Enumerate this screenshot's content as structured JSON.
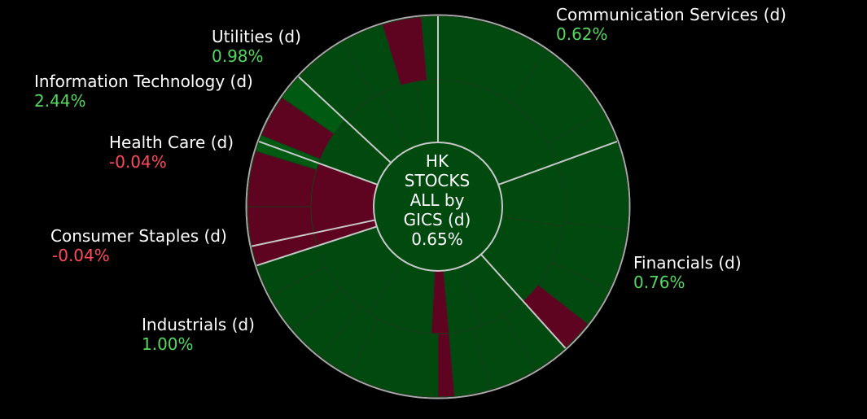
{
  "colors": {
    "background": "#000000",
    "positive_fill": "#004a0f",
    "positive_bright_fill": "#005a12",
    "negative_fill": "#5e0320",
    "sector_separator": "#c8c8c8",
    "sub_separator": "#1a3a1a",
    "outer_ring": "#a8a8a8",
    "positive_text": "#55d860",
    "negative_text": "#ff4a5a",
    "label_text": "#ffffff"
  },
  "center": {
    "line1": "HK",
    "line2": "STOCKS",
    "line3": "ALL by",
    "line4": "GICS (d)",
    "value": "0.65%"
  },
  "sectors": [
    {
      "name": "Communication Services (d)",
      "change": "0.62%",
      "sign": "positive"
    },
    {
      "name": "Financials (d)",
      "change": "0.76%",
      "sign": "positive"
    },
    {
      "name": "Industrials (d)",
      "change": "1.00%",
      "sign": "positive"
    },
    {
      "name": "Consumer Staples (d)",
      "change": "-0.04%",
      "sign": "negative"
    },
    {
      "name": "Health Care (d)",
      "change": "-0.04%",
      "sign": "negative"
    },
    {
      "name": "Information Technology (d)",
      "change": "2.44%",
      "sign": "positive"
    },
    {
      "name": "Utilities (d)",
      "change": "0.98%",
      "sign": "positive"
    }
  ],
  "chart_data": {
    "type": "sunburst",
    "title": "HK STOCKS ALL by GICS (d)",
    "total_change_pct": 0.65,
    "sector_changes_pct": [
      {
        "sector": "Communication Services (d)",
        "change_pct": 0.62
      },
      {
        "sector": "Financials (d)",
        "change_pct": 0.76
      },
      {
        "sector": "Industrials (d)",
        "change_pct": 1.0
      },
      {
        "sector": "Consumer Staples (d)",
        "change_pct": -0.04
      },
      {
        "sector": "Health Care (d)",
        "change_pct": -0.04
      },
      {
        "sector": "Information Technology (d)",
        "change_pct": 2.44
      },
      {
        "sector": "Utilities (d)",
        "change_pct": 0.98
      }
    ]
  }
}
